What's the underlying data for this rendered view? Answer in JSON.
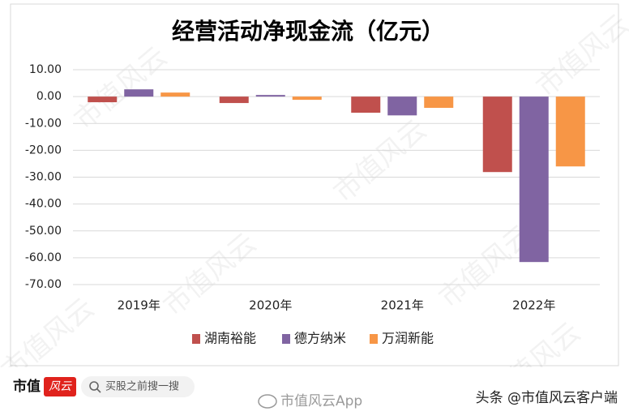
{
  "chart_data": {
    "type": "bar",
    "title": "经营活动净现金流（亿元）",
    "categories": [
      "2019年",
      "2020年",
      "2021年",
      "2022年"
    ],
    "series": [
      {
        "name": "湖南裕能",
        "color": "#c0504d",
        "values": [
          -2.1,
          -2.4,
          -6.0,
          -28.1
        ]
      },
      {
        "name": "德方纳米",
        "color": "#8064a2",
        "values": [
          2.7,
          0.6,
          -7.0,
          -61.6
        ]
      },
      {
        "name": "万润新能",
        "color": "#f79646",
        "values": [
          1.5,
          -1.2,
          -4.2,
          -26.0
        ]
      }
    ],
    "ylim": [
      -70,
      10
    ],
    "yticks": [
      {
        "value": 10,
        "label": "10.00"
      },
      {
        "value": 0,
        "label": "0.00"
      },
      {
        "value": -10,
        "label": "-10.00"
      },
      {
        "value": -20,
        "label": "-20.00"
      },
      {
        "value": -30,
        "label": "-30.00"
      },
      {
        "value": -40,
        "label": "-40.00"
      },
      {
        "value": -50,
        "label": "-50.00"
      },
      {
        "value": -60,
        "label": "-60.00"
      },
      {
        "value": -70,
        "label": "-70.00"
      }
    ],
    "grid": true,
    "legend": "bottom"
  },
  "watermark": "市值风云",
  "footer": {
    "brand": "市值",
    "brand_badge": "风云",
    "search": "买股之前搜一搜",
    "app": "市值风云App",
    "account": "头条 @市值风云客户端"
  }
}
